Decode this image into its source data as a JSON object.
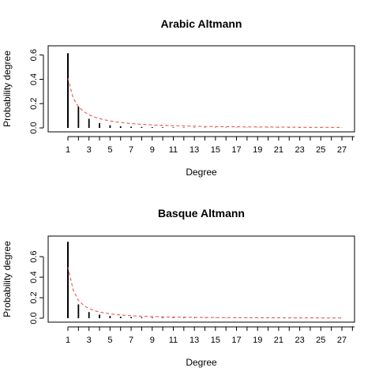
{
  "chart_data": [
    {
      "type": "bar",
      "title": "Arabic Altmann",
      "xlabel": "Degree",
      "ylabel": "Probability degree",
      "x_tick_labels": [
        "1",
        "3",
        "5",
        "7",
        "9",
        "11",
        "13",
        "15",
        "17",
        "19",
        "21",
        "23",
        "25",
        "27"
      ],
      "y_tick_labels": [
        "0.0",
        "0.2",
        "0.4",
        "0.6"
      ],
      "xlim": [
        0,
        28
      ],
      "ylim": [
        0,
        0.65
      ],
      "grid": false,
      "series": [
        {
          "type": "bar",
          "color": "#000000",
          "x": [
            1,
            2,
            3,
            4,
            5,
            6,
            7,
            8,
            9,
            10,
            11,
            12,
            13,
            14,
            15,
            16,
            17,
            18,
            19,
            20,
            21,
            22,
            23,
            24,
            25,
            26,
            27
          ],
          "values": [
            0.615,
            0.175,
            0.075,
            0.04,
            0.022,
            0.014,
            0.01,
            0.008,
            0.006,
            0.005,
            0.004,
            0.0035,
            0.003,
            0.0025,
            0.002,
            0.002,
            0.0018,
            0.0016,
            0.0015,
            0.0014,
            0.0013,
            0.0012,
            0.0011,
            0.001,
            0.001,
            0.0009,
            0.0009
          ]
        },
        {
          "type": "line",
          "style": "dashed",
          "color": "#e8473a",
          "x": [
            1,
            1.5,
            2,
            2.5,
            3,
            3.5,
            4,
            5,
            6,
            7,
            8,
            9,
            10,
            11,
            12,
            13,
            14,
            15,
            16,
            17,
            18,
            19,
            20,
            21,
            22,
            23,
            24,
            25,
            26,
            27
          ],
          "values": [
            0.41,
            0.245,
            0.175,
            0.135,
            0.108,
            0.09,
            0.076,
            0.057,
            0.045,
            0.036,
            0.03,
            0.025,
            0.021,
            0.018,
            0.016,
            0.014,
            0.012,
            0.011,
            0.01,
            0.009,
            0.008,
            0.0075,
            0.007,
            0.0065,
            0.006,
            0.0055,
            0.005,
            0.0048,
            0.0045,
            0.0042
          ]
        }
      ]
    },
    {
      "type": "bar",
      "title": "Basque Altmann",
      "xlabel": "Degree",
      "ylabel": "Probability degree",
      "x_tick_labels": [
        "1",
        "3",
        "5",
        "7",
        "9",
        "11",
        "13",
        "15",
        "17",
        "19",
        "21",
        "23",
        "25",
        "27"
      ],
      "y_tick_labels": [
        "0.0",
        "0.2",
        "0.4",
        "0.6"
      ],
      "xlim": [
        0,
        28
      ],
      "ylim": [
        0,
        0.77
      ],
      "grid": false,
      "series": [
        {
          "type": "bar",
          "color": "#000000",
          "x": [
            1,
            2,
            3,
            4,
            5,
            6,
            7,
            8,
            9,
            10,
            11,
            12,
            13,
            14,
            15,
            16,
            17,
            18,
            19,
            20,
            21,
            22,
            23,
            24,
            25,
            26,
            27
          ],
          "values": [
            0.745,
            0.135,
            0.06,
            0.035,
            0.022,
            0.015,
            0.011,
            0.008,
            0.006,
            0.005,
            0.004,
            0.0035,
            0.003,
            0.0025,
            0.0022,
            0.002,
            0.0018,
            0.0016,
            0.0015,
            0.0014,
            0.0013,
            0.0012,
            0.0011,
            0.001,
            0.001,
            0.0009,
            0.0009
          ]
        },
        {
          "type": "line",
          "style": "dashed",
          "color": "#e8473a",
          "x": [
            1,
            1.5,
            2,
            2.5,
            3,
            3.5,
            4,
            5,
            6,
            7,
            8,
            9,
            10,
            11,
            12,
            13,
            14,
            15,
            16,
            17,
            18,
            19,
            20,
            21,
            22,
            23,
            24,
            25,
            26,
            27
          ],
          "values": [
            0.5,
            0.275,
            0.175,
            0.125,
            0.095,
            0.075,
            0.06,
            0.042,
            0.031,
            0.024,
            0.019,
            0.016,
            0.013,
            0.011,
            0.0095,
            0.0083,
            0.0073,
            0.0065,
            0.0058,
            0.0052,
            0.0047,
            0.0043,
            0.0039,
            0.0036,
            0.0033,
            0.003,
            0.0028,
            0.0026,
            0.0024,
            0.0023
          ]
        }
      ]
    }
  ]
}
